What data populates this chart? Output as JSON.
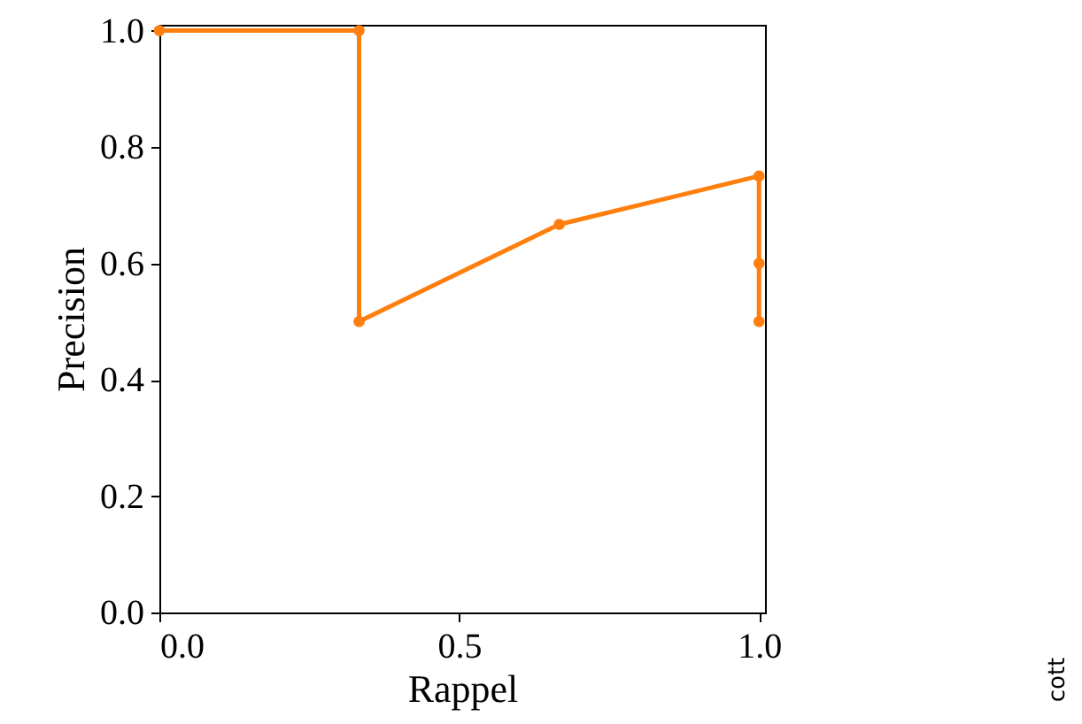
{
  "chart_data": {
    "type": "line",
    "xlabel": "Rappel",
    "ylabel": "Precision",
    "x": [
      0,
      0.333,
      0.333,
      0.667,
      1,
      1,
      1
    ],
    "series": [
      {
        "color": "#ff7f0e",
        "values": [
          1,
          1,
          0.5,
          0.667,
          0.75,
          0.6,
          0.5
        ]
      }
    ],
    "xlim": [
      0,
      1.01
    ],
    "ylim": [
      0,
      1.01
    ],
    "xticks": [
      {
        "value": 0,
        "label": "0.0"
      },
      0.5,
      {
        "value": 1,
        "label": "1.0"
      }
    ],
    "yticks": [
      {
        "value": 0,
        "label": "0.0"
      },
      0.2,
      0.4,
      0.6,
      0.8,
      {
        "value": 1,
        "label": "1.0"
      }
    ],
    "marker": "circle",
    "line_style": "solid",
    "grid": false,
    "annotations": [
      "cott"
    ]
  }
}
